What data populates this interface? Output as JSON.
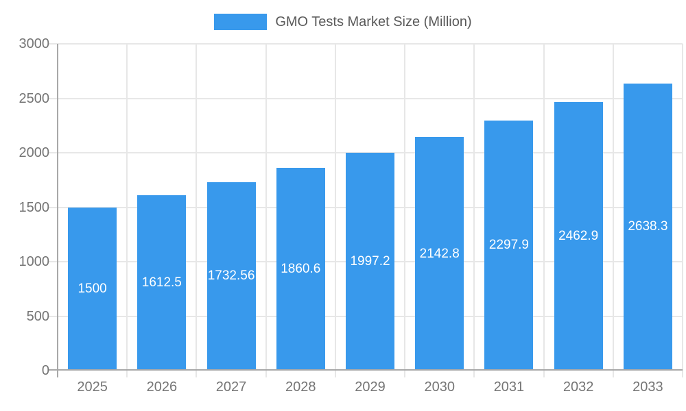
{
  "chart_data": {
    "type": "bar",
    "title": "GMO Tests Market Size (Million)",
    "categories": [
      "2025",
      "2026",
      "2027",
      "2028",
      "2029",
      "2030",
      "2031",
      "2032",
      "2033"
    ],
    "values": [
      1500,
      1612.5,
      1732.56,
      1860.6,
      1997.2,
      2142.8,
      2297.9,
      2462.9,
      2638.3
    ],
    "value_labels": [
      "1500",
      "1612.5",
      "1732.56",
      "1860.6",
      "1997.2",
      "2142.8",
      "2297.9",
      "2462.9",
      "2638.3"
    ],
    "xlabel": "",
    "ylabel": "",
    "ylim": [
      0,
      3000
    ],
    "y_ticks": [
      0,
      500,
      1000,
      1500,
      2000,
      2500,
      3000
    ],
    "grid": true,
    "legend_position": "top-center",
    "colors": {
      "bar": "#3899ec",
      "bar_label": "#ffffff",
      "axis_text": "#757575",
      "legend_text": "#595959",
      "gridline": "#e7e7e7",
      "axis_line": "#a8a8a8",
      "background": "#ffffff"
    }
  }
}
